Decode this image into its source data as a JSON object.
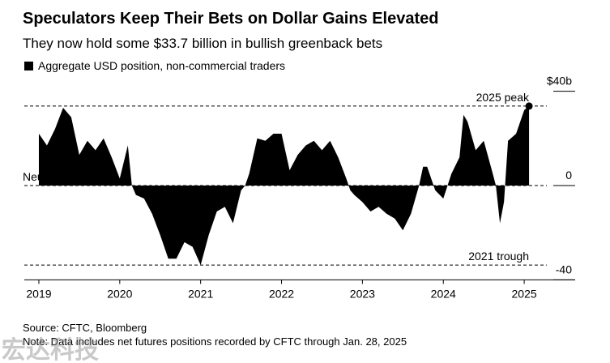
{
  "chart_data": {
    "type": "area",
    "title": "Speculators Keep Their Bets on Dollar Gains Elevated",
    "subtitle": "They now hold some $33.7 billion in bullish greenback bets",
    "series": [
      {
        "name": "Aggregate USD position, non-commercial traders",
        "color": "#000000",
        "x": [
          2019.0,
          2019.1,
          2019.2,
          2019.3,
          2019.4,
          2019.5,
          2019.6,
          2019.7,
          2019.8,
          2019.9,
          2020.0,
          2020.1,
          2020.15,
          2020.2,
          2020.3,
          2020.4,
          2020.5,
          2020.6,
          2020.7,
          2020.8,
          2020.9,
          2021.0,
          2021.1,
          2021.2,
          2021.3,
          2021.4,
          2021.5,
          2021.55,
          2021.6,
          2021.7,
          2021.8,
          2021.9,
          2022.0,
          2022.1,
          2022.2,
          2022.3,
          2022.4,
          2022.5,
          2022.6,
          2022.7,
          2022.8,
          2022.85,
          2022.9,
          2023.0,
          2023.1,
          2023.2,
          2023.3,
          2023.4,
          2023.5,
          2023.6,
          2023.7,
          2023.75,
          2023.8,
          2023.9,
          2024.0,
          2024.1,
          2024.2,
          2024.25,
          2024.3,
          2024.4,
          2024.5,
          2024.6,
          2024.65,
          2024.7,
          2024.75,
          2024.8,
          2024.9,
          2025.0,
          2025.06
        ],
        "values": [
          22,
          17,
          24,
          33,
          29,
          13,
          19,
          15,
          20,
          12,
          3,
          17,
          0,
          -4,
          -5.5,
          -12,
          -21,
          -31,
          -31,
          -24,
          -26,
          -33.7,
          -21,
          -11,
          -9,
          -16,
          -2,
          0,
          5,
          20,
          19,
          22,
          22,
          6.5,
          13,
          17,
          19,
          15,
          19,
          12,
          3,
          -2,
          -4,
          -7,
          -11,
          -9,
          -12,
          -14,
          -19,
          -12,
          0,
          8,
          8,
          -2,
          -5.5,
          5,
          12,
          30,
          27,
          15,
          19,
          6.5,
          0,
          -16,
          -7,
          19,
          22,
          32,
          33.7
        ]
      }
    ],
    "annotations": [
      {
        "text": "2025 peak",
        "value": 33.7
      },
      {
        "text": "2021 trough",
        "value": -33.7
      },
      {
        "text": "Neutral",
        "value": 0
      }
    ],
    "xlim": [
      2018.82,
      2025.63
    ],
    "xticks": [
      2019,
      2020,
      2021,
      2022,
      2023,
      2024,
      2025
    ],
    "ylim": [
      -40,
      40
    ],
    "yticks": [
      {
        "value": 40,
        "label": "$40b"
      },
      0,
      -40
    ],
    "source": "Source: CFTC, Bloomberg",
    "note": "Note: Data includes net futures positions recorded by CFTC through Jan. 28, 2025",
    "watermark": "宏达科技"
  }
}
